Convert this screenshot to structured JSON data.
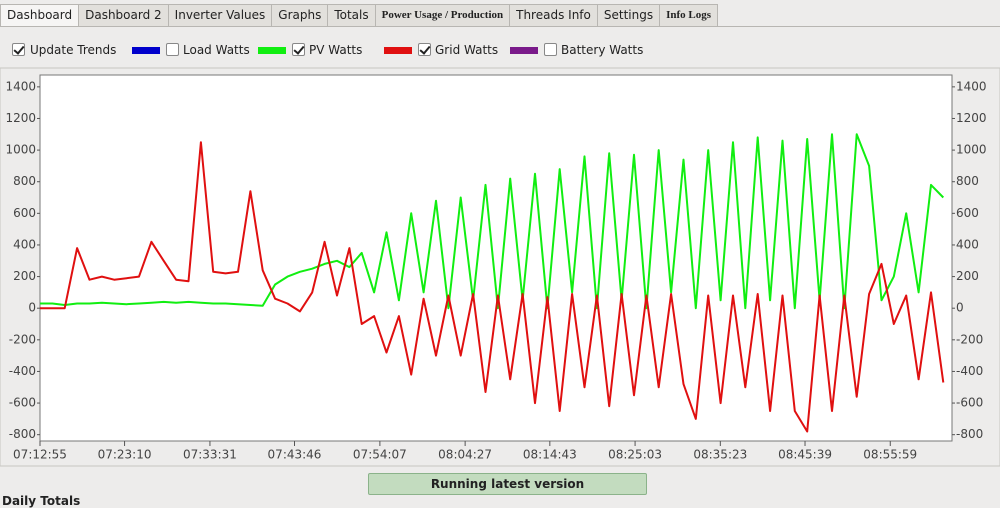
{
  "tabs": [
    "Dashboard",
    "Dashboard 2",
    "Inverter Values",
    "Graphs",
    "Totals",
    "Power Usage / Production",
    "Threads Info",
    "Settings",
    "Info Logs"
  ],
  "active_tab": 0,
  "update_trends": {
    "label": "Update Trends",
    "checked": true
  },
  "chart_data": {
    "type": "line",
    "x": [
      "07:12:55",
      "07:14:25",
      "07:15:55",
      "07:17:25",
      "07:18:55",
      "07:20:25",
      "07:21:55",
      "07:23:25",
      "07:24:55",
      "07:26:25",
      "07:27:55",
      "07:29:25",
      "07:30:55",
      "07:32:25",
      "07:33:55",
      "07:35:25",
      "07:36:55",
      "07:38:25",
      "07:39:55",
      "07:41:25",
      "07:42:55",
      "07:44:25",
      "07:45:55",
      "07:47:25",
      "07:48:55",
      "07:50:25",
      "07:51:55",
      "07:53:25",
      "07:54:55",
      "07:56:25",
      "07:57:55",
      "07:59:25",
      "08:00:55",
      "08:02:25",
      "08:03:55",
      "08:05:25",
      "08:06:55",
      "08:08:25",
      "08:09:55",
      "08:11:25",
      "08:12:55",
      "08:14:25",
      "08:15:55",
      "08:17:25",
      "08:18:55",
      "08:20:25",
      "08:21:55",
      "08:23:25",
      "08:24:55",
      "08:26:25",
      "08:27:55",
      "08:29:25",
      "08:30:55",
      "08:32:25",
      "08:33:55",
      "08:35:25",
      "08:36:55",
      "08:38:25",
      "08:39:55",
      "08:41:25",
      "08:42:55",
      "08:44:25",
      "08:45:55",
      "08:47:25",
      "08:48:55",
      "08:50:25",
      "08:51:55",
      "08:53:25",
      "08:54:55",
      "08:56:25",
      "08:57:55",
      "08:59:25",
      "09:00:55",
      "09:02:25"
    ],
    "series": [
      {
        "name": "Load Watts",
        "color": "#0000cc",
        "checked": false
      },
      {
        "name": "PV Watts",
        "color": "#11ee11",
        "checked": true,
        "values": [
          30,
          30,
          20,
          30,
          30,
          35,
          30,
          25,
          30,
          35,
          40,
          35,
          40,
          35,
          30,
          30,
          25,
          20,
          15,
          150,
          200,
          230,
          250,
          280,
          300,
          260,
          350,
          100,
          480,
          50,
          600,
          100,
          680,
          0,
          700,
          50,
          780,
          0,
          820,
          50,
          850,
          0,
          880,
          100,
          960,
          0,
          980,
          50,
          970,
          0,
          1000,
          100,
          940,
          0,
          1000,
          50,
          1050,
          0,
          1080,
          50,
          1060,
          0,
          1070,
          50,
          1100,
          0,
          1100,
          900,
          50,
          200,
          600,
          100,
          780,
          700
        ]
      },
      {
        "name": "Grid Watts",
        "color": "#e01010",
        "checked": true,
        "values": [
          0,
          0,
          0,
          380,
          180,
          200,
          180,
          190,
          200,
          420,
          300,
          180,
          170,
          1050,
          230,
          220,
          230,
          740,
          240,
          60,
          30,
          -20,
          100,
          420,
          80,
          380,
          -100,
          -50,
          -280,
          -50,
          -420,
          60,
          -300,
          80,
          -300,
          90,
          -530,
          80,
          -450,
          90,
          -600,
          70,
          -650,
          90,
          -500,
          80,
          -620,
          90,
          -550,
          80,
          -500,
          90,
          -480,
          -700,
          80,
          -600,
          80,
          -500,
          90,
          -650,
          80,
          -650,
          -780,
          80,
          -650,
          80,
          -560,
          90,
          280,
          -100,
          80,
          -450,
          100,
          -470
        ]
      },
      {
        "name": "Battery Watts",
        "color": "#7a1a8a",
        "checked": false
      }
    ],
    "xlim": [
      "07:12:55",
      "09:03:28"
    ],
    "xticks": [
      "07:12:55",
      "07:23:10",
      "07:33:31",
      "07:43:46",
      "07:54:07",
      "08:04:27",
      "08:14:43",
      "08:25:03",
      "08:35:23",
      "08:45:39",
      "08:55:59"
    ],
    "ylim": [
      -840,
      1475
    ],
    "yticks": [
      -800,
      -600,
      -400,
      -200,
      0,
      200,
      400,
      600,
      800,
      1000,
      1200,
      1400
    ],
    "grid": false
  },
  "status_button": "Running latest version",
  "section_title": "Daily Totals"
}
